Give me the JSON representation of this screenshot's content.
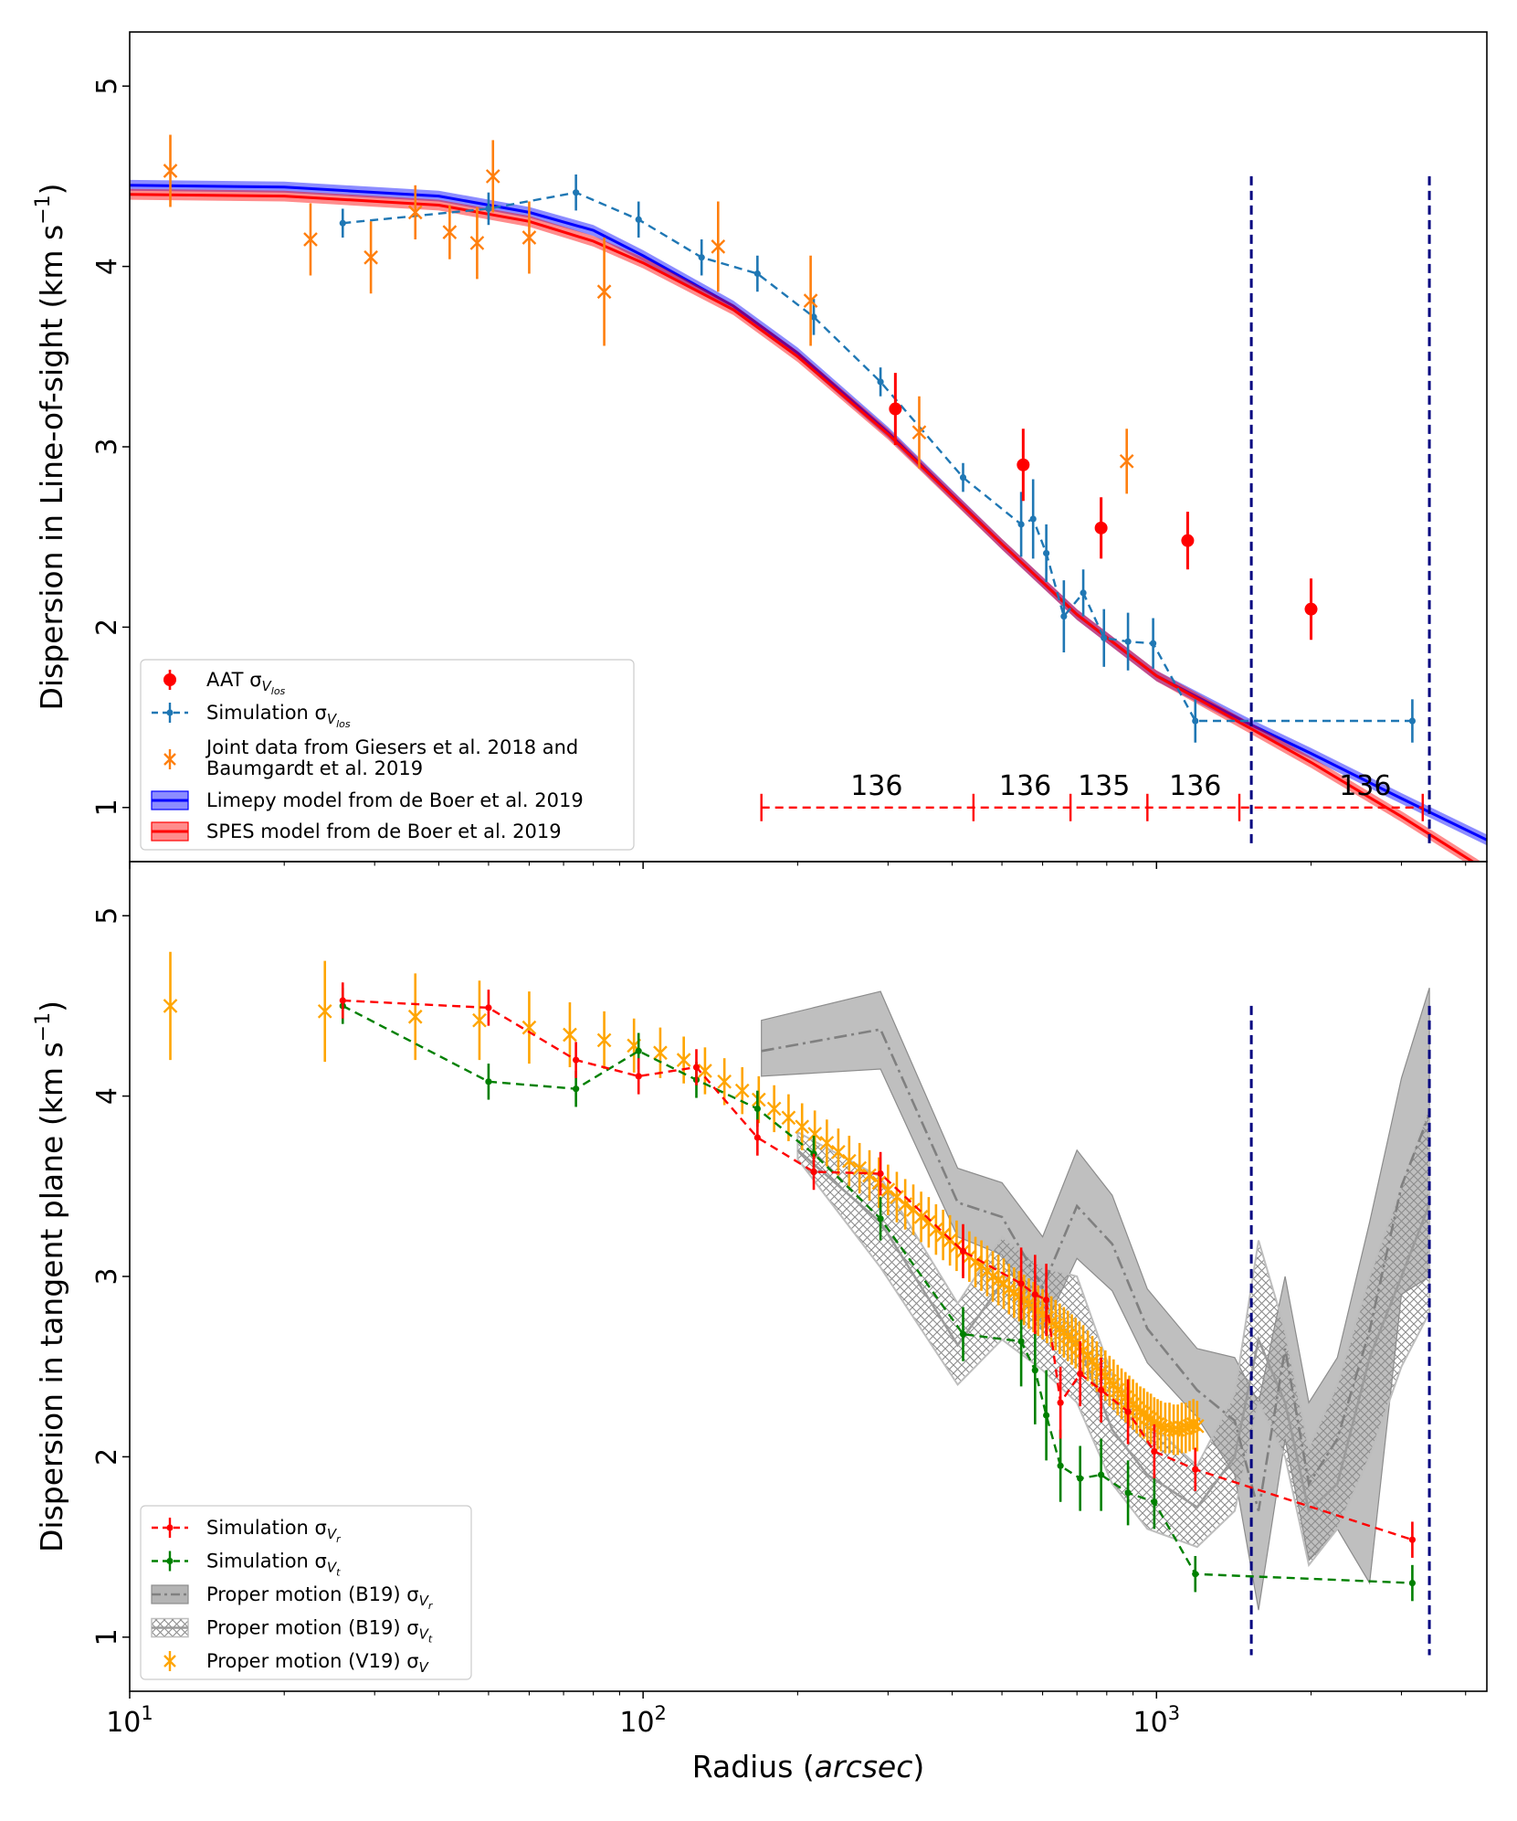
{
  "chart_data": [
    {
      "type": "scatter",
      "panel": "top",
      "ylabel": "Dispersion in Line-of-sight (km s⁻¹)",
      "ylabel_text": "Dispersion in Line-of-sight (km s",
      "ylabel_exp": "−1",
      "ylabel_close": ")",
      "xscale": "log",
      "xlim": [
        10,
        4400
      ],
      "ylim": [
        0.7,
        5.3
      ],
      "yticks": [
        "1",
        "2",
        "3",
        "4",
        "5"
      ],
      "legend_position": "lower-left",
      "series": [
        {
          "name": "AAT σV_los",
          "legend_label": "AAT σ",
          "legend_sub": "V",
          "legend_subsub": "los",
          "color": "#ff0000",
          "style": "points",
          "x": [
            310,
            550,
            780,
            1150,
            2000
          ],
          "y": [
            3.21,
            2.9,
            2.55,
            2.48,
            2.1
          ],
          "err": [
            0.2,
            0.2,
            0.17,
            0.16,
            0.17
          ]
        },
        {
          "name": "Simulation σV_los",
          "legend_label": "Simulation σ",
          "legend_sub": "V",
          "legend_subsub": "los",
          "color": "#1f77b4",
          "style": "dashed-line-markers",
          "x": [
            26,
            50,
            74,
            98,
            130,
            167,
            215,
            290,
            420,
            545,
            575,
            610,
            660,
            720,
            790,
            880,
            985,
            1190,
            3150
          ],
          "y": [
            4.24,
            4.32,
            4.41,
            4.26,
            4.05,
            3.96,
            3.72,
            3.36,
            2.83,
            2.57,
            2.6,
            2.41,
            2.06,
            2.19,
            1.94,
            1.92,
            1.91,
            1.48,
            1.48
          ],
          "err": [
            0.08,
            0.09,
            0.1,
            0.1,
            0.1,
            0.1,
            0.1,
            0.08,
            0.08,
            0.18,
            0.22,
            0.16,
            0.2,
            0.13,
            0.16,
            0.16,
            0.14,
            0.12,
            0.12
          ]
        },
        {
          "name": "Joint data from Giesers et al. 2018 and Baumgardt et al. 2019",
          "legend_label": "Joint data from Giesers et al. 2018 and",
          "legend_label2": "Baumgardt et al. 2019",
          "color": "#ff7f0e",
          "style": "x-markers",
          "x": [
            12,
            22.5,
            29.5,
            36,
            42,
            47.5,
            51,
            60,
            84,
            140,
            212,
            345,
            875
          ],
          "y": [
            4.53,
            4.15,
            4.05,
            4.3,
            4.19,
            4.13,
            4.5,
            4.16,
            3.86,
            4.11,
            3.81,
            3.08,
            2.92
          ],
          "err": [
            0.2,
            0.2,
            0.2,
            0.15,
            0.15,
            0.2,
            0.2,
            0.2,
            0.3,
            0.25,
            0.25,
            0.2,
            0.18
          ]
        },
        {
          "name": "Limepy model from de Boer et al. 2019",
          "legend_label": "Limepy model from de Boer et al. 2019",
          "color": "#0000ff",
          "style": "band",
          "x": [
            10,
            20,
            40,
            60,
            80,
            100,
            150,
            200,
            300,
            500,
            700,
            1000,
            1500,
            2000,
            3000,
            4400
          ],
          "y": [
            4.45,
            4.44,
            4.39,
            4.3,
            4.2,
            4.06,
            3.78,
            3.52,
            3.08,
            2.46,
            2.07,
            1.73,
            1.47,
            1.3,
            1.05,
            0.82
          ]
        },
        {
          "name": "SPES model from de Boer et al. 2019",
          "legend_label": "SPES model from de Boer et al. 2019",
          "color": "#ff0000",
          "style": "band",
          "x": [
            10,
            20,
            40,
            60,
            80,
            100,
            150,
            200,
            300,
            500,
            700,
            1000,
            1500,
            2000,
            3000,
            4400
          ],
          "y": [
            4.4,
            4.39,
            4.34,
            4.25,
            4.14,
            4.02,
            3.76,
            3.5,
            3.07,
            2.46,
            2.07,
            1.73,
            1.45,
            1.25,
            0.95,
            0.65
          ]
        }
      ],
      "annotations": {
        "bin_edges": [
          170,
          440,
          680,
          960,
          1450,
          3300
        ],
        "bin_counts": [
          "136",
          "136",
          "135",
          "136",
          "136"
        ],
        "bin_label_x": [
          285,
          555,
          790,
          1190,
          2550
        ],
        "bin_line_y": 1.0,
        "bin_text_y": 1.12,
        "tidal_lines_x": [
          1530,
          3400
        ]
      }
    },
    {
      "type": "scatter",
      "panel": "bottom",
      "xlabel": "Radius (arcsec)",
      "xlabel_text": "Radius (",
      "xlabel_italic": "arcsec",
      "xlabel_close": ")",
      "ylabel": "Dispersion in tangent plane (km s⁻¹)",
      "ylabel_text": "Dispersion in tangent plane (km s",
      "ylabel_exp": "−1",
      "ylabel_close": ")",
      "xscale": "log",
      "xlim": [
        10,
        4400
      ],
      "ylim": [
        0.7,
        5.3
      ],
      "yticks": [
        "1",
        "2",
        "3",
        "4",
        "5"
      ],
      "xticks": [
        {
          "base": "10",
          "exp": "1",
          "value": 10
        },
        {
          "base": "10",
          "exp": "2",
          "value": 100
        },
        {
          "base": "10",
          "exp": "3",
          "value": 1000
        }
      ],
      "legend_position": "lower-left",
      "series": [
        {
          "name": "Simulation σV_r",
          "legend_label": "Simulation σ",
          "legend_sub": "V",
          "legend_subsub": "r",
          "color": "#ff0000",
          "style": "dashed-line-markers",
          "x": [
            26,
            50,
            74,
            98,
            127,
            167,
            215,
            290,
            420,
            545,
            580,
            610,
            650,
            710,
            780,
            880,
            990,
            1190,
            3150
          ],
          "y": [
            4.53,
            4.49,
            4.2,
            4.11,
            4.16,
            3.77,
            3.58,
            3.57,
            3.14,
            2.96,
            2.9,
            2.87,
            2.3,
            2.46,
            2.37,
            2.25,
            2.03,
            1.93,
            1.54
          ],
          "err": [
            0.1,
            0.1,
            0.1,
            0.1,
            0.1,
            0.1,
            0.1,
            0.12,
            0.15,
            0.2,
            0.22,
            0.2,
            0.2,
            0.18,
            0.18,
            0.18,
            0.15,
            0.12,
            0.1
          ]
        },
        {
          "name": "Simulation σV_t",
          "legend_label": "Simulation σ",
          "legend_sub": "V",
          "legend_subsub": "t",
          "color": "#008000",
          "style": "dashed-line-markers",
          "x": [
            26,
            50,
            74,
            98,
            127,
            167,
            215,
            290,
            420,
            545,
            580,
            610,
            650,
            710,
            780,
            880,
            990,
            1190,
            3150
          ],
          "y": [
            4.5,
            4.08,
            4.04,
            4.25,
            4.09,
            3.93,
            3.68,
            3.32,
            2.68,
            2.64,
            2.48,
            2.23,
            1.95,
            1.88,
            1.9,
            1.8,
            1.75,
            1.35,
            1.3
          ],
          "err": [
            0.1,
            0.1,
            0.1,
            0.1,
            0.1,
            0.1,
            0.1,
            0.12,
            0.15,
            0.25,
            0.3,
            0.25,
            0.2,
            0.18,
            0.2,
            0.18,
            0.15,
            0.1,
            0.1
          ]
        },
        {
          "name": "Proper motion (B19) σV_r",
          "legend_label": "Proper motion (B19) σ",
          "legend_sub": "V",
          "legend_subsub": "r",
          "color": "#808080",
          "style": "dashdot-band",
          "x": [
            170,
            290,
            410,
            500,
            600,
            700,
            820,
            960,
            1200,
            1420,
            1580,
            1780,
            1980,
            2250,
            2600,
            3000,
            3400
          ],
          "y": [
            4.25,
            4.37,
            3.41,
            3.33,
            2.94,
            3.39,
            3.18,
            2.71,
            2.37,
            2.2,
            1.7,
            2.6,
            1.85,
            2.1,
            2.7,
            3.5,
            3.9
          ],
          "lower": [
            4.11,
            4.15,
            3.22,
            3.12,
            2.7,
            3.1,
            2.92,
            2.52,
            2.22,
            1.9,
            1.15,
            2.1,
            1.43,
            1.6,
            1.3,
            2.9,
            3.0
          ],
          "upper": [
            4.42,
            4.58,
            3.6,
            3.52,
            3.22,
            3.7,
            3.45,
            2.93,
            2.6,
            2.55,
            2.3,
            3.0,
            2.3,
            2.55,
            3.3,
            4.1,
            4.6
          ]
        },
        {
          "name": "Proper motion (B19) σV_t",
          "legend_label": "Proper motion (B19) σ",
          "legend_sub": "V",
          "legend_subsub": "t",
          "color": "#808080",
          "style": "hatched-band",
          "x": [
            200,
            290,
            410,
            500,
            600,
            700,
            820,
            960,
            1200,
            1420,
            1580,
            1780,
            1980,
            2250,
            2600,
            3000,
            3400
          ],
          "y": [
            3.7,
            3.3,
            2.62,
            2.96,
            2.78,
            2.65,
            2.15,
            1.9,
            1.72,
            2.0,
            2.65,
            2.3,
            1.7,
            1.85,
            2.55,
            3.0,
            3.4
          ],
          "lower": [
            3.65,
            3.05,
            2.4,
            2.65,
            2.48,
            2.3,
            1.85,
            1.6,
            1.5,
            1.7,
            2.3,
            2.0,
            1.4,
            1.6,
            2.0,
            2.5,
            2.8
          ],
          "upper": [
            3.8,
            3.55,
            2.85,
            3.22,
            3.05,
            3.0,
            2.45,
            2.2,
            1.95,
            2.35,
            3.2,
            2.7,
            2.05,
            2.4,
            3.0,
            3.5,
            3.95
          ]
        },
        {
          "name": "Proper motion (V19) σV",
          "legend_label": "Proper motion (V19) σ",
          "legend_sub": "V",
          "legend_subsub": "",
          "color": "#ffa500",
          "style": "x-markers",
          "x": [
            12,
            24,
            36,
            48,
            60,
            72,
            84,
            96,
            108,
            120,
            132,
            144,
            156,
            168,
            180,
            192,
            204,
            216,
            228,
            240,
            252,
            264,
            276,
            288,
            300,
            312,
            324,
            336,
            348,
            360,
            372,
            384,
            396,
            408,
            420,
            432,
            444,
            456,
            468,
            480,
            492,
            504,
            516,
            528,
            540,
            552,
            564,
            576,
            588,
            600,
            612,
            624,
            636,
            648,
            660,
            672,
            684,
            696,
            708,
            720,
            735,
            750,
            765,
            780,
            795,
            810,
            825,
            840,
            855,
            870,
            885,
            900,
            915,
            930,
            945,
            960,
            975,
            990,
            1005,
            1020,
            1040,
            1060,
            1080,
            1100,
            1120,
            1140,
            1160,
            1180,
            1200
          ],
          "y": [
            4.5,
            4.47,
            4.44,
            4.42,
            4.38,
            4.34,
            4.31,
            4.28,
            4.24,
            4.2,
            4.14,
            4.08,
            4.03,
            3.98,
            3.93,
            3.88,
            3.83,
            3.79,
            3.74,
            3.69,
            3.64,
            3.6,
            3.56,
            3.52,
            3.48,
            3.44,
            3.4,
            3.37,
            3.33,
            3.3,
            3.26,
            3.23,
            3.2,
            3.17,
            3.14,
            3.11,
            3.08,
            3.06,
            3.03,
            3.0,
            2.98,
            2.96,
            2.93,
            2.91,
            2.89,
            2.87,
            2.85,
            2.83,
            2.81,
            2.79,
            2.77,
            2.75,
            2.73,
            2.71,
            2.69,
            2.67,
            2.65,
            2.63,
            2.61,
            2.59,
            2.56,
            2.53,
            2.5,
            2.47,
            2.45,
            2.42,
            2.4,
            2.37,
            2.35,
            2.33,
            2.31,
            2.29,
            2.27,
            2.25,
            2.24,
            2.22,
            2.21,
            2.19,
            2.18,
            2.17,
            2.16,
            2.16,
            2.15,
            2.15,
            2.16,
            2.16,
            2.17,
            2.18,
            2.17
          ],
          "err": [
            0.3,
            0.28,
            0.24,
            0.22,
            0.2,
            0.18,
            0.16,
            0.15,
            0.14,
            0.13,
            0.13,
            0.13,
            0.13,
            0.13,
            0.13,
            0.13,
            0.13,
            0.13,
            0.13,
            0.13,
            0.14,
            0.14,
            0.14,
            0.14,
            0.14,
            0.14,
            0.14,
            0.14,
            0.14,
            0.14,
            0.14,
            0.14,
            0.14,
            0.14,
            0.14,
            0.14,
            0.14,
            0.14,
            0.14,
            0.14,
            0.14,
            0.14,
            0.14,
            0.14,
            0.14,
            0.14,
            0.14,
            0.14,
            0.14,
            0.14,
            0.14,
            0.14,
            0.14,
            0.14,
            0.14,
            0.14,
            0.14,
            0.14,
            0.14,
            0.14,
            0.14,
            0.14,
            0.14,
            0.14,
            0.14,
            0.14,
            0.14,
            0.14,
            0.14,
            0.14,
            0.14,
            0.14,
            0.14,
            0.14,
            0.14,
            0.14,
            0.14,
            0.14,
            0.14,
            0.14,
            0.14,
            0.14,
            0.14,
            0.14,
            0.14,
            0.14,
            0.14,
            0.14,
            0.14
          ]
        }
      ],
      "annotations": {
        "tidal_lines_x": [
          1530,
          3400
        ]
      }
    }
  ]
}
